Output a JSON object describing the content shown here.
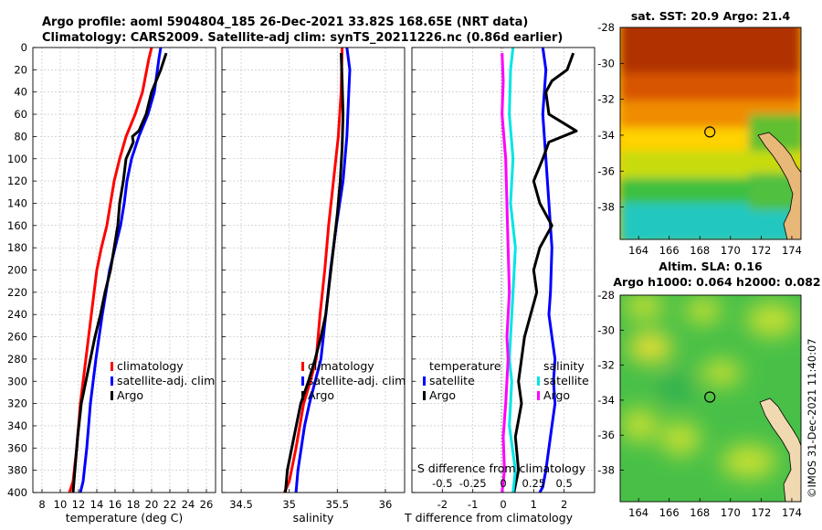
{
  "figure": {
    "title_line1": "Argo profile: aoml 5904804_185 26-Dec-2021 33.82S 168.65E (NRT data)",
    "title_line2": "Climatology: CARS2009. Satellite-adj clim: synTS_20211226.nc (0.86d earlier)",
    "watermark": "©IMOS 31-Dec-2021 11:40:07"
  },
  "chart_data": [
    {
      "type": "line",
      "id": "temperature-panel",
      "xlabel": "temperature (deg C)",
      "ylabel": "",
      "xlim": [
        7,
        27
      ],
      "ylim": [
        0,
        400
      ],
      "y_reversed": true,
      "xticks": [
        8,
        10,
        12,
        14,
        16,
        18,
        20,
        22,
        24,
        26
      ],
      "yticks": [
        0,
        20,
        40,
        60,
        80,
        100,
        120,
        140,
        160,
        180,
        200,
        220,
        240,
        260,
        280,
        300,
        320,
        340,
        360,
        380,
        400
      ],
      "grid": true,
      "legend_position": "lower-right",
      "legend": [
        "climatology",
        "satellite-adj. clim",
        "Argo"
      ],
      "series": [
        {
          "name": "climatology",
          "color": "#ff0000",
          "x": [
            20.0,
            19.7,
            19.0,
            18.2,
            17.2,
            16.5,
            15.9,
            15.5,
            15.1,
            14.5,
            14.0,
            13.4,
            12.8,
            12.2,
            11.8,
            11.4,
            11.0
          ],
          "y": [
            0,
            10,
            40,
            60,
            80,
            100,
            120,
            140,
            160,
            180,
            200,
            240,
            280,
            320,
            360,
            390,
            400
          ]
        },
        {
          "name": "satellite-adj. clim",
          "color": "#0000ff",
          "x": [
            21.0,
            20.8,
            20.3,
            19.6,
            18.6,
            17.8,
            17.3,
            17.0,
            16.6,
            16.0,
            15.4,
            14.6,
            13.9,
            13.3,
            12.9,
            12.5,
            12.2
          ],
          "y": [
            0,
            10,
            40,
            60,
            80,
            100,
            120,
            140,
            160,
            180,
            200,
            240,
            280,
            320,
            360,
            390,
            400
          ]
        },
        {
          "name": "Argo",
          "color": "#000000",
          "x": [
            21.6,
            21.0,
            20.0,
            19.4,
            18.6,
            17.9,
            18.0,
            17.2,
            16.9,
            16.5,
            16.3,
            15.9,
            15.5,
            14.9,
            14.4,
            13.8,
            13.3,
            12.8,
            12.3,
            11.9,
            11.6,
            11.4
          ],
          "y": [
            5,
            20,
            40,
            60,
            75,
            80,
            85,
            100,
            120,
            140,
            160,
            180,
            200,
            220,
            240,
            260,
            280,
            300,
            320,
            350,
            380,
            400
          ]
        }
      ]
    },
    {
      "type": "line",
      "id": "salinity-panel",
      "xlabel": "salinity",
      "ylabel": "",
      "xlim": [
        34.3,
        36.2
      ],
      "ylim": [
        0,
        400
      ],
      "y_reversed": true,
      "xticks": [
        34.5,
        35,
        35.5,
        36
      ],
      "grid": true,
      "legend_position": "lower-right",
      "legend": [
        "climatology",
        "satellite-adj. clim",
        "Argo"
      ],
      "series": [
        {
          "name": "climatology",
          "color": "#ff0000",
          "x": [
            35.55,
            35.54,
            35.51,
            35.46,
            35.41,
            35.37,
            35.32,
            35.28,
            35.22,
            35.15,
            35.07,
            35.0,
            34.95
          ],
          "y": [
            0,
            40,
            80,
            120,
            160,
            200,
            240,
            280,
            300,
            320,
            360,
            390,
            400
          ]
        },
        {
          "name": "satellite-adj. clim",
          "color": "#0000ff",
          "x": [
            35.6,
            35.63,
            35.62,
            35.6,
            35.56,
            35.49,
            35.43,
            35.38,
            35.33,
            35.27,
            35.21,
            35.16,
            35.09,
            35.07
          ],
          "y": [
            0,
            20,
            40,
            80,
            120,
            160,
            200,
            240,
            280,
            300,
            320,
            340,
            380,
            400
          ]
        },
        {
          "name": "Argo",
          "color": "#000000",
          "x": [
            35.54,
            35.55,
            35.56,
            35.55,
            35.53,
            35.5,
            35.46,
            35.42,
            35.38,
            35.33,
            35.27,
            35.2,
            35.12,
            35.05,
            34.98,
            34.96
          ],
          "y": [
            5,
            30,
            60,
            90,
            120,
            150,
            180,
            210,
            240,
            260,
            280,
            300,
            320,
            350,
            380,
            400
          ]
        }
      ]
    },
    {
      "type": "line",
      "id": "difference-panel",
      "xlabel": "T difference from climatology",
      "x2label": "S difference from climatology",
      "xlim": [
        -3,
        3
      ],
      "x2lim": [
        -0.75,
        0.75
      ],
      "ylim": [
        0,
        400
      ],
      "y_reversed": true,
      "xticks": [
        -2,
        -1,
        0,
        1,
        2
      ],
      "xtick_labels": [
        "-2",
        "-1",
        "0",
        "1",
        "2"
      ],
      "x2ticks": [
        -0.5,
        -0.25,
        0,
        0.25,
        0.5
      ],
      "x2tick_labels": [
        "-0.5",
        "-0.25",
        "0",
        "0.25",
        "0.5"
      ],
      "grid": true,
      "legend_position": "lower-right",
      "legend_left_heading": "temperature",
      "legend_right_heading": "salinity",
      "legend_left": [
        "satellite",
        "Argo"
      ],
      "legend_right": [
        "satellite",
        "Argo"
      ],
      "series": [
        {
          "name": "temperature satellite",
          "color": "#0000ff",
          "axis": "T",
          "x": [
            1.3,
            1.4,
            1.3,
            1.4,
            1.5,
            1.6,
            1.55,
            1.5,
            1.6,
            1.7,
            1.65,
            1.7,
            1.6,
            1.5,
            1.4,
            1.3,
            1.2
          ],
          "y": [
            0,
            20,
            60,
            100,
            140,
            180,
            220,
            240,
            260,
            280,
            300,
            320,
            340,
            360,
            380,
            395,
            400
          ]
        },
        {
          "name": "temperature Argo",
          "color": "#000000",
          "axis": "T",
          "x": [
            2.3,
            2.1,
            1.6,
            1.4,
            1.5,
            2.4,
            1.5,
            1.3,
            1.0,
            1.2,
            1.6,
            1.2,
            1.0,
            1.1,
            0.9,
            0.7,
            0.6,
            0.5,
            0.6,
            0.4,
            0.5,
            0.35
          ],
          "y": [
            5,
            20,
            30,
            40,
            60,
            75,
            85,
            100,
            120,
            140,
            160,
            180,
            200,
            220,
            240,
            260,
            280,
            300,
            320,
            350,
            380,
            400
          ]
        },
        {
          "name": "salinity satellite",
          "color": "#00e5e5",
          "axis": "S",
          "x": [
            0.08,
            0.06,
            0.05,
            0.08,
            0.06,
            0.1,
            0.08,
            0.06,
            0.05,
            0.07,
            0.06,
            0.05,
            0.1,
            0.08
          ],
          "y": [
            0,
            20,
            60,
            100,
            140,
            180,
            220,
            260,
            280,
            300,
            320,
            340,
            380,
            400
          ]
        },
        {
          "name": "salinity Argo",
          "color": "#ff00ff",
          "axis": "S",
          "x": [
            -0.01,
            0.0,
            -0.01,
            0.02,
            0.03,
            0.04,
            0.05,
            0.03,
            0.04,
            0.03,
            0.02,
            0.0,
            0.01,
            -0.01
          ],
          "y": [
            5,
            30,
            60,
            100,
            140,
            180,
            220,
            260,
            280,
            300,
            320,
            350,
            380,
            400
          ]
        }
      ]
    },
    {
      "type": "heatmap",
      "id": "sst-map",
      "title": "sat. SST: 20.9 Argo: 21.4",
      "xlim": [
        162.8,
        174.6
      ],
      "ylim": [
        -39.8,
        -28
      ],
      "xticks": [
        164,
        166,
        168,
        170,
        172,
        174
      ],
      "yticks": [
        -28,
        -30,
        -32,
        -34,
        -36,
        -38
      ],
      "profile_marker": {
        "lon": 168.65,
        "lat": -33.82
      }
    },
    {
      "type": "heatmap",
      "id": "sla-map",
      "title_line1": "Altim. SLA: 0.16",
      "title_line2": "Argo h1000: 0.064 h2000: 0.082",
      "xlim": [
        162.8,
        174.6
      ],
      "ylim": [
        -39.8,
        -28
      ],
      "xticks": [
        164,
        166,
        168,
        170,
        172,
        174
      ],
      "yticks": [
        -28,
        -30,
        -32,
        -34,
        -36,
        -38
      ],
      "profile_marker": {
        "lon": 168.65,
        "lat": -33.82
      }
    }
  ]
}
